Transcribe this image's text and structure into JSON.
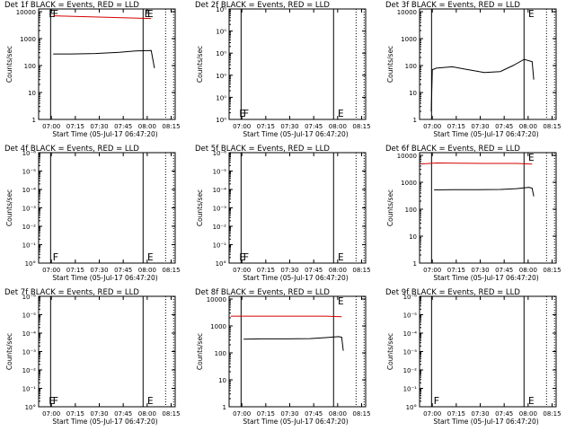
{
  "chart_data": [
    {
      "type": "line",
      "title": "Det 1f BLACK = Events, RED = LLD",
      "xlabel": "Start Time (05-Jul-17 06:47:20)",
      "ylabel": "Counts/sec",
      "xticks": [
        "07:00",
        "07:15",
        "07:30",
        "07:45",
        "08:00",
        "08:15"
      ],
      "ytick_labels": [
        "1",
        "10",
        "100",
        "1000",
        "10000"
      ],
      "ylim_log10": [
        0,
        4.1
      ],
      "markers": [
        {
          "label": "E",
          "time": 6.4
        },
        {
          "label": "F",
          "time": 8.8
        },
        {
          "label": "E",
          "time": 68.1
        },
        {
          "label": "E",
          "time": 66.2
        }
      ],
      "series": [
        {
          "color": "#000000",
          "x": [
            8.6,
            20,
            35,
            50,
            60,
            70,
            72
          ],
          "y": [
            270,
            270,
            280,
            310,
            350,
            360,
            80
          ]
        },
        {
          "color": "#d40000",
          "x": [
            8.8,
            70
          ],
          "y": [
            7000,
            5600
          ]
        }
      ]
    },
    {
      "type": "line",
      "title": "Det 2f BLACK = Events, RED = LLD",
      "xlabel": "Start Time (05-Jul-17 06:47:20)",
      "ylabel": "Counts/sec",
      "xticks": [
        "07:00",
        "07:15",
        "07:30",
        "07:45",
        "08:00",
        "08:15"
      ],
      "ytick_labels": [
        "10⁰",
        "10⁰",
        "10⁰",
        "10⁰",
        "10⁰",
        "10⁰"
      ],
      "ylim_log10": [
        0,
        5
      ],
      "markers": [
        {
          "label": "E",
          "time": 6.4
        },
        {
          "label": "F",
          "time": 8.8
        },
        {
          "label": "E",
          "time": 68.1
        }
      ],
      "series": []
    },
    {
      "type": "line",
      "title": "Det 3f BLACK = Events, RED = LLD",
      "xlabel": "Start Time (05-Jul-17 06:47:20)",
      "ylabel": "Counts/sec",
      "xticks": [
        "07:00",
        "07:15",
        "07:30",
        "07:45",
        "08:00",
        "08:15"
      ],
      "ytick_labels": [
        "1",
        "10",
        "100",
        "1000",
        "10000"
      ],
      "ylim_log10": [
        0,
        4.1
      ],
      "markers": [
        {
          "label": "E",
          "time": 68.1
        }
      ],
      "series": [
        {
          "color": "#000000",
          "x": [
            6.8,
            7.5,
            10,
            20,
            30,
            40,
            50,
            58,
            65,
            70,
            71
          ],
          "y": [
            2,
            70,
            80,
            90,
            70,
            55,
            60,
            100,
            170,
            140,
            30
          ]
        }
      ]
    },
    {
      "type": "line",
      "title": "Det 4f BLACK = Events, RED = LLD",
      "xlabel": "Start Time (05-Jul-17 06:47:20)",
      "ylabel": "Counts/sec",
      "xticks": [
        "07:00",
        "07:15",
        "07:30",
        "07:45",
        "08:00",
        "08:15"
      ],
      "ytick_labels": [
        "10°",
        "10⁻¹",
        "10⁻²",
        "10⁻³",
        "10⁻⁴",
        "10⁻⁵",
        "10⁻⁶"
      ],
      "ylim_log10": [
        0,
        6
      ],
      "markers": [
        {
          "label": "F",
          "time": 8.8
        },
        {
          "label": "E",
          "time": 68.1
        }
      ],
      "series": []
    },
    {
      "type": "line",
      "title": "Det 5f BLACK = Events, RED = LLD",
      "xlabel": "Start Time (05-Jul-17 06:47:20)",
      "ylabel": "Counts/sec",
      "xticks": [
        "07:00",
        "07:15",
        "07:30",
        "07:45",
        "08:00",
        "08:15"
      ],
      "ytick_labels": [
        "10°",
        "10⁻¹",
        "10⁻²",
        "10⁻³",
        "10⁻⁴",
        "10⁻⁵",
        "10⁻⁶"
      ],
      "ylim_log10": [
        0,
        6
      ],
      "markers": [
        {
          "label": "E",
          "time": 6.4
        },
        {
          "label": "F",
          "time": 8.8
        },
        {
          "label": "E",
          "time": 68.1
        }
      ],
      "series": []
    },
    {
      "type": "line",
      "title": "Det 6f BLACK = Events, RED = LLD",
      "xlabel": "Start Time (05-Jul-17 06:47:20)",
      "ylabel": "Counts/sec",
      "xticks": [
        "07:00",
        "07:15",
        "07:30",
        "07:45",
        "08:00",
        "08:15"
      ],
      "ytick_labels": [
        "1",
        "10",
        "100",
        "1000",
        "10000"
      ],
      "ylim_log10": [
        0,
        4.1
      ],
      "markers": [
        {
          "label": "E",
          "time": 68.1
        }
      ],
      "series": [
        {
          "color": "#000000",
          "x": [
            8.6,
            20,
            35,
            50,
            60,
            68,
            70,
            71
          ],
          "y": [
            520,
            530,
            530,
            540,
            580,
            650,
            600,
            300
          ]
        },
        {
          "color": "#d40000",
          "x": [
            0.5,
            10,
            40,
            60,
            70
          ],
          "y": [
            4800,
            5200,
            5000,
            5000,
            4700
          ]
        }
      ]
    },
    {
      "type": "line",
      "title": "Det 7f BLACK = Events, RED = LLD",
      "xlabel": "Start Time (05-Jul-17 06:47:20)",
      "ylabel": "Counts/sec",
      "xticks": [
        "07:00",
        "07:15",
        "07:30",
        "07:45",
        "08:00",
        "08:15"
      ],
      "ytick_labels": [
        "10°",
        "10⁻¹",
        "10⁻²",
        "10⁻³",
        "10⁻⁴",
        "10⁻⁵",
        "10⁻⁶"
      ],
      "ylim_log10": [
        0,
        6
      ],
      "markers": [
        {
          "label": "E",
          "time": 6.4
        },
        {
          "label": "F",
          "time": 8.8
        },
        {
          "label": "E",
          "time": 68.1
        }
      ],
      "series": []
    },
    {
      "type": "line",
      "title": "Det 8f BLACK = Events, RED = LLD",
      "xlabel": "Start Time (05-Jul-17 06:47:20)",
      "ylabel": "Counts/sec",
      "xticks": [
        "07:00",
        "07:15",
        "07:30",
        "07:45",
        "08:00",
        "08:15"
      ],
      "ytick_labels": [
        "1",
        "10",
        "100",
        "1000",
        "10000"
      ],
      "ylim_log10": [
        0,
        4.1
      ],
      "markers": [
        {
          "label": "E",
          "time": 68.1
        }
      ],
      "series": [
        {
          "color": "#000000",
          "x": [
            8.6,
            20,
            35,
            50,
            60,
            68,
            70,
            71
          ],
          "y": [
            320,
            330,
            330,
            340,
            370,
            400,
            380,
            120
          ]
        },
        {
          "color": "#d40000",
          "x": [
            0.5,
            20,
            40,
            60,
            70
          ],
          "y": [
            2300,
            2300,
            2300,
            2300,
            2200
          ]
        }
      ]
    },
    {
      "type": "line",
      "title": "Det 9f BLACK = Events, RED = LLD",
      "xlabel": "Start Time (05-Jul-17 06:47:20)",
      "ylabel": "Counts/sec",
      "xticks": [
        "07:00",
        "07:15",
        "07:30",
        "07:45",
        "08:00",
        "08:15"
      ],
      "ytick_labels": [
        "10°",
        "10⁻¹",
        "10⁻²",
        "10⁻³",
        "10⁻⁴",
        "10⁻⁵",
        "10⁻⁶"
      ],
      "ylim_log10": [
        0,
        6
      ],
      "markers": [
        {
          "label": "F",
          "time": 8.8
        },
        {
          "label": "E",
          "time": 68.1
        }
      ],
      "series": []
    }
  ]
}
